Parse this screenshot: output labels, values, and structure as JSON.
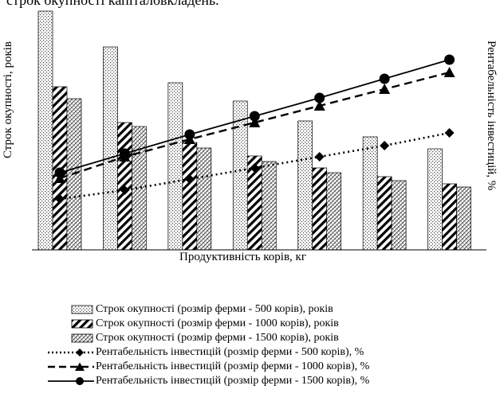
{
  "top_text": "строк окупності капіталовкладень.",
  "chart_data": {
    "type": "bar",
    "title": "",
    "xlabel": "Продуктивність корів, кг",
    "ylabel": "Строк окупності, років",
    "y2label": "Рентабельність інвестицій, %",
    "categories": [
      "",
      "",
      "",
      "",
      "",
      "",
      ""
    ],
    "bar_series": [
      {
        "name": "Строк окупності (розмір ферми - 500 корів), років",
        "pattern": "dots",
        "values": [
          300,
          255,
          210,
          187,
          162,
          142,
          127
        ]
      },
      {
        "name": "Строк окупності (розмір ферми - 1000 корів), років",
        "pattern": "diagonal",
        "values": [
          205,
          160,
          135,
          118,
          103,
          92,
          83
        ]
      },
      {
        "name": "Строк окупності (розмір ферми - 1500 корів), років",
        "pattern": "crosshatch",
        "values": [
          190,
          155,
          128,
          111,
          97,
          87,
          79
        ]
      }
    ],
    "line_series": [
      {
        "name": "Рентабельність інвестицій (розмір ферми - 500 корів), %",
        "style": "dotted",
        "marker": "diamond",
        "values": [
          64,
          75,
          89,
          103,
          117,
          131,
          147
        ]
      },
      {
        "name": "Рентабельність інвестицій (розмір ферми - 1000 корів), %",
        "style": "dashed",
        "marker": "triangle",
        "values": [
          90,
          117,
          139,
          160,
          181,
          202,
          223
        ]
      },
      {
        "name": "Рентабельність інвестицій (розмір ферми - 1500 корів), %",
        "style": "solid",
        "marker": "circle",
        "values": [
          97,
          121,
          145,
          168,
          191,
          215,
          239
        ]
      }
    ],
    "ylim": [
      0,
      300
    ],
    "grid": false,
    "legend_position": "bottom"
  }
}
